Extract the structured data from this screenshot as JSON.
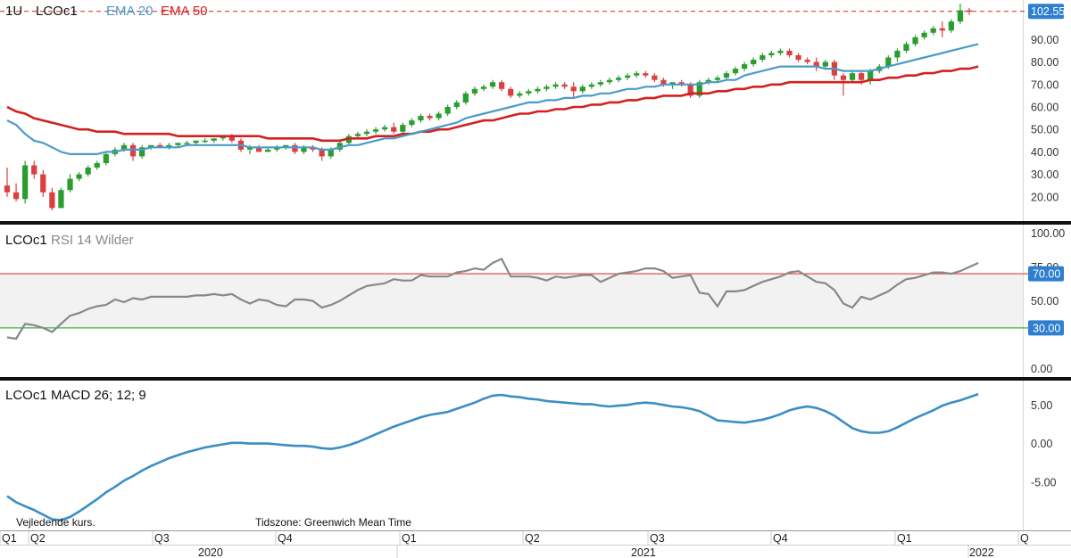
{
  "chart_data": {
    "type": "candlestick",
    "colors": {
      "up": "#2a9d2f",
      "down": "#d94040",
      "ema20": "#4a9bc9",
      "ema50": "#d42020",
      "rsi": "#888888",
      "macd": "#3b8ec4",
      "ob": "#e05050",
      "os": "#3cb03c",
      "badge": "#2e7fd0"
    },
    "price_panel": {
      "labels": {
        "interval": "1U",
        "symbol": "LCOc1",
        "ema20": "EMA 20",
        "ema50": "EMA 50"
      },
      "last_price": 102.55,
      "last_price_label": "102.55",
      "y_ticks": [
        "90.00",
        "80.00",
        "70.00",
        "60.00",
        "50.00",
        "40.00",
        "30.00",
        "20.00"
      ],
      "ylim": [
        10,
        106
      ],
      "candles": [
        [
          25,
          33,
          20,
          22
        ],
        [
          22,
          26,
          18,
          19
        ],
        [
          19,
          36,
          17,
          34
        ],
        [
          34,
          36,
          28,
          30
        ],
        [
          30,
          32,
          20,
          22
        ],
        [
          22,
          24,
          14,
          15
        ],
        [
          15,
          24,
          15,
          23
        ],
        [
          23,
          30,
          22,
          28
        ],
        [
          28,
          31,
          27,
          30
        ],
        [
          30,
          34,
          29,
          33
        ],
        [
          33,
          36,
          32,
          35
        ],
        [
          35,
          40,
          34,
          39
        ],
        [
          39,
          42,
          38,
          41
        ],
        [
          41,
          44,
          40,
          43
        ],
        [
          43,
          44,
          36,
          38
        ],
        [
          38,
          43,
          37,
          42
        ],
        [
          42,
          43,
          41,
          43
        ],
        [
          43,
          44,
          42,
          42
        ],
        [
          42,
          44,
          41,
          43
        ],
        [
          43,
          44,
          42,
          44
        ],
        [
          44,
          45,
          43,
          44
        ],
        [
          44,
          45,
          43,
          45
        ],
        [
          45,
          46,
          44,
          45
        ],
        [
          45,
          46,
          44,
          46
        ],
        [
          46,
          47,
          45,
          47
        ],
        [
          47,
          48,
          44,
          45
        ],
        [
          45,
          46,
          40,
          41
        ],
        [
          41,
          43,
          39,
          42
        ],
        [
          42,
          43,
          40,
          40
        ],
        [
          40,
          42,
          40,
          41
        ],
        [
          41,
          43,
          40,
          42
        ],
        [
          42,
          43,
          41,
          43
        ],
        [
          43,
          44,
          39,
          40
        ],
        [
          40,
          43,
          39,
          42
        ],
        [
          42,
          43,
          40,
          41
        ],
        [
          41,
          42,
          36,
          38
        ],
        [
          38,
          42,
          37,
          41
        ],
        [
          41,
          45,
          40,
          44
        ],
        [
          44,
          48,
          43,
          47
        ],
        [
          47,
          49,
          46,
          48
        ],
        [
          48,
          50,
          47,
          49
        ],
        [
          49,
          51,
          48,
          50
        ],
        [
          50,
          52,
          49,
          51
        ],
        [
          51,
          53,
          48,
          49
        ],
        [
          49,
          53,
          48,
          52
        ],
        [
          52,
          55,
          51,
          54
        ],
        [
          54,
          57,
          53,
          56
        ],
        [
          56,
          57,
          54,
          55
        ],
        [
          55,
          58,
          54,
          57
        ],
        [
          57,
          61,
          56,
          60
        ],
        [
          60,
          63,
          59,
          62
        ],
        [
          62,
          67,
          61,
          66
        ],
        [
          66,
          69,
          65,
          68
        ],
        [
          68,
          70,
          67,
          69
        ],
        [
          69,
          72,
          68,
          71
        ],
        [
          71,
          72,
          67,
          68
        ],
        [
          68,
          69,
          64,
          65
        ],
        [
          65,
          67,
          64,
          66
        ],
        [
          66,
          68,
          65,
          67
        ],
        [
          67,
          69,
          66,
          68
        ],
        [
          68,
          70,
          67,
          69
        ],
        [
          69,
          71,
          68,
          70
        ],
        [
          70,
          71,
          68,
          69
        ],
        [
          69,
          71,
          64,
          67
        ],
        [
          67,
          70,
          66,
          69
        ],
        [
          69,
          71,
          68,
          70
        ],
        [
          70,
          72,
          69,
          71
        ],
        [
          71,
          73,
          70,
          72
        ],
        [
          72,
          74,
          71,
          73
        ],
        [
          73,
          75,
          72,
          74
        ],
        [
          74,
          76,
          73,
          75
        ],
        [
          75,
          76,
          73,
          74
        ],
        [
          74,
          75,
          71,
          72
        ],
        [
          72,
          73,
          69,
          70
        ],
        [
          70,
          71,
          68,
          71
        ],
        [
          71,
          72,
          69,
          70
        ],
        [
          70,
          71,
          64,
          65
        ],
        [
          65,
          72,
          64,
          71
        ],
        [
          71,
          73,
          70,
          72
        ],
        [
          72,
          74,
          71,
          73
        ],
        [
          73,
          76,
          72,
          75
        ],
        [
          75,
          78,
          74,
          77
        ],
        [
          77,
          80,
          76,
          79
        ],
        [
          79,
          82,
          78,
          81
        ],
        [
          81,
          84,
          80,
          83
        ],
        [
          83,
          85,
          82,
          84
        ],
        [
          84,
          86,
          83,
          85
        ],
        [
          85,
          86,
          82,
          83
        ],
        [
          83,
          84,
          80,
          81
        ],
        [
          81,
          82,
          79,
          80
        ],
        [
          80,
          82,
          76,
          78
        ],
        [
          78,
          81,
          77,
          80
        ],
        [
          80,
          81,
          72,
          74
        ],
        [
          74,
          75,
          65,
          72
        ],
        [
          72,
          76,
          71,
          75
        ],
        [
          75,
          76,
          70,
          72
        ],
        [
          72,
          77,
          70,
          76
        ],
        [
          76,
          79,
          75,
          78
        ],
        [
          78,
          83,
          77,
          82
        ],
        [
          82,
          86,
          80,
          85
        ],
        [
          85,
          89,
          84,
          88
        ],
        [
          88,
          92,
          87,
          91
        ],
        [
          91,
          94,
          90,
          93
        ],
        [
          93,
          96,
          92,
          95
        ],
        [
          95,
          98,
          91,
          94
        ],
        [
          94,
          99,
          93,
          98
        ],
        [
          98,
          106,
          97,
          103
        ],
        [
          103,
          104,
          101,
          102.55
        ]
      ],
      "ema20": [
        54,
        52,
        48,
        45,
        44,
        42,
        40,
        39,
        39,
        39,
        39,
        40,
        40,
        41,
        41,
        41,
        42,
        42,
        42,
        42,
        43,
        43,
        43,
        43,
        43,
        43,
        43,
        42,
        42,
        42,
        42,
        42,
        42,
        42,
        42,
        41,
        41,
        42,
        43,
        43,
        44,
        45,
        46,
        46,
        47,
        48,
        49,
        50,
        51,
        52,
        53,
        55,
        56,
        57,
        58,
        59,
        60,
        61,
        62,
        62,
        63,
        63,
        64,
        64,
        65,
        65,
        66,
        66,
        67,
        68,
        68,
        69,
        69,
        70,
        70,
        70,
        70,
        70,
        71,
        71,
        72,
        72,
        74,
        75,
        76,
        77,
        78,
        78,
        78,
        78,
        78,
        77,
        77,
        76,
        76,
        76,
        76,
        77,
        78,
        79,
        80,
        81,
        82,
        83,
        84,
        85,
        86,
        87,
        88
      ],
      "ema50": [
        60,
        58,
        57,
        55,
        54,
        53,
        52,
        51,
        50,
        50,
        49,
        49,
        49,
        48,
        48,
        48,
        48,
        48,
        48,
        47,
        47,
        47,
        47,
        47,
        47,
        47,
        47,
        47,
        47,
        46,
        46,
        46,
        46,
        46,
        46,
        45,
        45,
        45,
        46,
        46,
        46,
        47,
        47,
        47,
        48,
        48,
        49,
        49,
        50,
        50,
        51,
        52,
        53,
        54,
        54,
        55,
        56,
        57,
        57,
        58,
        58,
        59,
        59,
        60,
        60,
        61,
        61,
        62,
        62,
        63,
        63,
        64,
        64,
        65,
        65,
        65,
        66,
        66,
        66,
        67,
        67,
        68,
        68,
        69,
        69,
        70,
        70,
        71,
        71,
        71,
        71,
        71,
        71,
        71,
        71,
        71,
        72,
        72,
        73,
        73,
        74,
        74,
        75,
        75,
        76,
        76,
        77,
        77,
        78
      ]
    },
    "rsi_panel": {
      "label_symbol": "LCOc1",
      "label_name": "RSI 14 Wilder",
      "y_ticks": [
        "100.00",
        "75.00",
        "50.00",
        "0.00"
      ],
      "ylim": [
        -5,
        105
      ],
      "overbought": 70,
      "oversold": 30,
      "overbought_label": "70.00",
      "oversold_label": "30.00",
      "values": [
        23,
        22,
        33,
        32,
        30,
        27,
        33,
        39,
        41,
        44,
        46,
        47,
        51,
        49,
        52,
        51,
        53,
        53,
        53,
        53,
        53,
        54,
        54,
        55,
        54,
        55,
        51,
        48,
        51,
        50,
        47,
        46,
        51,
        51,
        50,
        45,
        47,
        50,
        54,
        58,
        61,
        62,
        63,
        66,
        65,
        65,
        69,
        68,
        68,
        68,
        71,
        72,
        74,
        73,
        78,
        81,
        68,
        68,
        68,
        67,
        65,
        68,
        67,
        68,
        69,
        69,
        64,
        67,
        70,
        71,
        72,
        74,
        74,
        72,
        67,
        68,
        69,
        56,
        55,
        46,
        57,
        57,
        58,
        61,
        64,
        66,
        68,
        71,
        72,
        68,
        64,
        63,
        58,
        48,
        45,
        53,
        51,
        54,
        57,
        62,
        66,
        67,
        69,
        71,
        71,
        70,
        72,
        75,
        78
      ]
    },
    "macd_panel": {
      "label_symbol": "LCOc1",
      "label_name": "MACD 26; 12; 9",
      "y_ticks": [
        "5.00",
        "0.00",
        "-5.00"
      ],
      "ylim": [
        -11,
        7.8
      ],
      "values": [
        -6.8,
        -7.6,
        -8.1,
        -8.6,
        -9.2,
        -9.8,
        -9.9,
        -9.5,
        -8.8,
        -8,
        -7.2,
        -6.3,
        -5.6,
        -4.8,
        -4.2,
        -3.5,
        -2.9,
        -2.4,
        -1.9,
        -1.5,
        -1.1,
        -0.8,
        -0.5,
        -0.3,
        -0.1,
        0.1,
        0.1,
        0,
        0,
        0,
        -0.1,
        -0.2,
        -0.3,
        -0.3,
        -0.4,
        -0.6,
        -0.7,
        -0.5,
        -0.2,
        0.2,
        0.7,
        1.2,
        1.7,
        2.2,
        2.6,
        3,
        3.4,
        3.7,
        3.9,
        4.1,
        4.5,
        4.9,
        5.3,
        5.8,
        6.2,
        6.3,
        6.1,
        6,
        5.8,
        5.7,
        5.5,
        5.4,
        5.3,
        5.2,
        5.1,
        5.1,
        4.9,
        4.8,
        4.9,
        5,
        5.2,
        5.3,
        5.2,
        5,
        4.8,
        4.7,
        4.5,
        4.2,
        3.6,
        3,
        2.9,
        2.8,
        2.7,
        2.9,
        3.1,
        3.4,
        3.8,
        4.3,
        4.6,
        4.8,
        4.6,
        4.2,
        3.6,
        2.8,
        2,
        1.6,
        1.4,
        1.4,
        1.6,
        2.1,
        2.7,
        3.3,
        3.8,
        4.3,
        4.9,
        5.3,
        5.6,
        6,
        6.4
      ]
    },
    "notes": {
      "left": "Vejledende kurs.",
      "right": "Tidszone: Greenwich Mean Time"
    },
    "x_quarters": [
      "Q1",
      "Q2",
      "Q3",
      "Q4",
      "Q1",
      "Q2",
      "Q3",
      "Q4",
      "Q1",
      "Q"
    ],
    "x_years": [
      "2020",
      "2021",
      "2022"
    ]
  }
}
